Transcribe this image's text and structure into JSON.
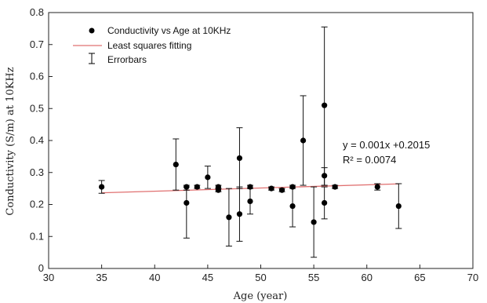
{
  "chart_data": {
    "type": "scatter",
    "xlabel": "Age (year)",
    "ylabel": "Conductivity (S/m) at 10KHz",
    "xlim": [
      30,
      70
    ],
    "ylim": [
      0,
      0.8
    ],
    "xticks": [
      "30",
      "35",
      "40",
      "45",
      "50",
      "55",
      "60",
      "65",
      "70"
    ],
    "yticks": [
      "0",
      "0.1",
      "0.2",
      "0.3",
      "0.4",
      "0.5",
      "0.6",
      "0.7",
      "0.8"
    ],
    "grid": false,
    "legend_position": "top-left",
    "legend": [
      {
        "label": "Conductivity vs Age at 10KHz",
        "marker": "dot"
      },
      {
        "label": "Least squares fitting",
        "marker": "line",
        "color": "#e07070"
      },
      {
        "label": "Errorbars",
        "marker": "errorbar"
      }
    ],
    "points": [
      {
        "x": 35,
        "y": 0.255,
        "err_low": 0.235,
        "err_high": 0.275
      },
      {
        "x": 42,
        "y": 0.325,
        "err_low": 0.245,
        "err_high": 0.405
      },
      {
        "x": 43,
        "y": 0.205,
        "err_low": 0.095,
        "err_high": 0.255
      },
      {
        "x": 43,
        "y": 0.255,
        "err_low": 0.245,
        "err_high": 0.26
      },
      {
        "x": 44,
        "y": 0.255,
        "err_low": 0.25,
        "err_high": 0.26
      },
      {
        "x": 45,
        "y": 0.285,
        "err_low": 0.25,
        "err_high": 0.32
      },
      {
        "x": 46,
        "y": 0.245,
        "err_low": 0.24,
        "err_high": 0.25
      },
      {
        "x": 46,
        "y": 0.255,
        "err_low": 0.25,
        "err_high": 0.26
      },
      {
        "x": 47,
        "y": 0.16,
        "err_low": 0.07,
        "err_high": 0.25
      },
      {
        "x": 48,
        "y": 0.345,
        "err_low": 0.25,
        "err_high": 0.44
      },
      {
        "x": 48,
        "y": 0.17,
        "err_low": 0.085,
        "err_high": 0.255
      },
      {
        "x": 49,
        "y": 0.255,
        "err_low": 0.25,
        "err_high": 0.26
      },
      {
        "x": 49,
        "y": 0.21,
        "err_low": 0.17,
        "err_high": 0.25
      },
      {
        "x": 51,
        "y": 0.25,
        "err_low": 0.245,
        "err_high": 0.255
      },
      {
        "x": 52,
        "y": 0.245,
        "err_low": 0.24,
        "err_high": 0.25
      },
      {
        "x": 53,
        "y": 0.255,
        "err_low": 0.25,
        "err_high": 0.26
      },
      {
        "x": 53,
        "y": 0.195,
        "err_low": 0.13,
        "err_high": 0.255
      },
      {
        "x": 54,
        "y": 0.4,
        "err_low": 0.26,
        "err_high": 0.54
      },
      {
        "x": 55,
        "y": 0.145,
        "err_low": 0.035,
        "err_high": 0.255
      },
      {
        "x": 56,
        "y": 0.51,
        "err_low": 0.26,
        "err_high": 0.755
      },
      {
        "x": 56,
        "y": 0.29,
        "err_low": 0.26,
        "err_high": 0.315
      },
      {
        "x": 56,
        "y": 0.205,
        "err_low": 0.155,
        "err_high": 0.255
      },
      {
        "x": 57,
        "y": 0.255,
        "err_low": 0.25,
        "err_high": 0.26
      },
      {
        "x": 61,
        "y": 0.255,
        "err_low": 0.245,
        "err_high": 0.265
      },
      {
        "x": 63,
        "y": 0.195,
        "err_low": 0.125,
        "err_high": 0.265
      }
    ],
    "fit": {
      "slope": 0.001,
      "intercept": 0.2015,
      "x_range": [
        35,
        63
      ],
      "color": "#e07070"
    },
    "annotations": [
      "y = 0.001x +0.2015",
      "R² = 0.0074"
    ]
  }
}
